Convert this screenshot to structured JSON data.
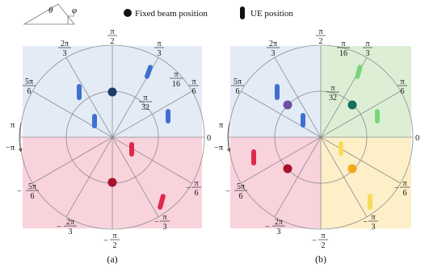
{
  "legend": {
    "theta_symbol": "θ",
    "phi_symbol": "φ",
    "fixed_beam_label": "Fixed beam position",
    "ue_label": "UE position"
  },
  "captions": {
    "a": "(a)",
    "b": "(b)"
  },
  "angle_labels": {
    "zero": "0",
    "pi": "π",
    "neg_pi": "−π",
    "pi_half": {
      "num": "π",
      "den": "2"
    },
    "pi_third": {
      "num": "π",
      "den": "3"
    },
    "pi_sixth": {
      "num": "π",
      "den": "6"
    },
    "pi_16": {
      "num": "π",
      "den": "16"
    },
    "pi_32": {
      "num": "π",
      "den": "32"
    },
    "two_pi_third": {
      "num": "2π",
      "den": "3"
    },
    "five_pi_sixth": {
      "num": "5π",
      "den": "6"
    },
    "neg_sign": "−"
  },
  "colors": {
    "blue_region": "#e3ebf7",
    "red_region": "#f8d3dc",
    "green_region": "#dcefd5",
    "yellow_region": "#fdefc8",
    "blue_ue": "#3f6fd1",
    "navy_beam": "#1f3a66",
    "red_ue": "#e0284c",
    "darkred_beam": "#a8122d",
    "purple_beam": "#6a4fa3",
    "teal_beam": "#156e5c",
    "green_ue": "#78d67a",
    "yellow_ue": "#f7dc5b",
    "orange_beam": "#f3a81b",
    "grid": "#8c8c8c"
  }
}
